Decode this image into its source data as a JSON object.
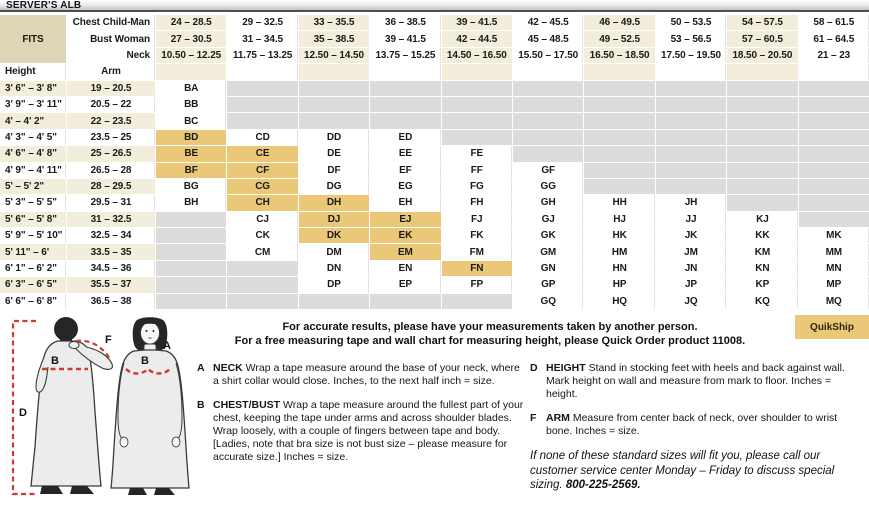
{
  "title": "SERVER'S ALB",
  "quikship_label": "QuikShip",
  "table": {
    "fits_label": "FITS",
    "row_labels": [
      "Chest Child-Man",
      "Bust Woman",
      "Neck"
    ],
    "chest": [
      "24 – 28.5",
      "29 – 32.5",
      "33 – 35.5",
      "36 – 38.5",
      "39 – 41.5",
      "42 – 45.5",
      "46 – 49.5",
      "50 – 53.5",
      "54 – 57.5",
      "58 – 61.5"
    ],
    "bust": [
      "27 – 30.5",
      "31 – 34.5",
      "35 – 38.5",
      "39 – 41.5",
      "42 – 44.5",
      "45 – 48.5",
      "49 – 52.5",
      "53 – 56.5",
      "57 – 60.5",
      "61 – 64.5"
    ],
    "neck": [
      "10.50 – 12.25",
      "11.75 – 13.25",
      "12.50 – 14.50",
      "13.75 – 15.25",
      "14.50 – 16.50",
      "15.50 – 17.50",
      "16.50 – 18.50",
      "17.50 – 19.50",
      "18.50 – 20.50",
      "21 – 23"
    ],
    "height_label": "Height",
    "arm_label": "Arm",
    "rows": [
      {
        "height": "3' 6\" – 3' 8\"",
        "arm": "19 – 20.5",
        "cells": [
          "BA",
          "",
          "",
          "",
          "",
          "",
          "",
          "",
          "",
          ""
        ]
      },
      {
        "height": "3' 9\" – 3' 11\"",
        "arm": "20.5 – 22",
        "cells": [
          "BB",
          "",
          "",
          "",
          "",
          "",
          "",
          "",
          "",
          ""
        ]
      },
      {
        "height": "4' – 4' 2\"",
        "arm": "22 – 23.5",
        "cells": [
          "BC",
          "",
          "",
          "",
          "",
          "",
          "",
          "",
          "",
          ""
        ]
      },
      {
        "height": "4' 3\" – 4' 5\"",
        "arm": "23.5 – 25",
        "cells": [
          "BD",
          "CD",
          "DD",
          "ED",
          "",
          "",
          "",
          "",
          "",
          ""
        ]
      },
      {
        "height": "4' 6\" – 4' 8\"",
        "arm": "25 – 26.5",
        "cells": [
          "BE",
          "CE",
          "DE",
          "EE",
          "FE",
          "",
          "",
          "",
          "",
          ""
        ]
      },
      {
        "height": "4' 9\" – 4' 11\"",
        "arm": "26.5 – 28",
        "cells": [
          "BF",
          "CF",
          "DF",
          "EF",
          "FF",
          "GF",
          "",
          "",
          "",
          ""
        ]
      },
      {
        "height": "5' – 5' 2\"",
        "arm": "28 – 29.5",
        "cells": [
          "BG",
          "CG",
          "DG",
          "EG",
          "FG",
          "GG",
          "",
          "",
          "",
          ""
        ]
      },
      {
        "height": "5' 3\" – 5' 5\"",
        "arm": "29.5 – 31",
        "cells": [
          "BH",
          "CH",
          "DH",
          "EH",
          "FH",
          "GH",
          "HH",
          "JH",
          "",
          ""
        ]
      },
      {
        "height": "5' 6\" – 5' 8\"",
        "arm": "31 – 32.5",
        "cells": [
          "",
          "CJ",
          "DJ",
          "EJ",
          "FJ",
          "GJ",
          "HJ",
          "JJ",
          "KJ",
          ""
        ]
      },
      {
        "height": "5' 9\" – 5' 10\"",
        "arm": "32.5 – 34",
        "cells": [
          "",
          "CK",
          "DK",
          "EK",
          "FK",
          "GK",
          "HK",
          "JK",
          "KK",
          "MK"
        ]
      },
      {
        "height": "5' 11\" – 6'",
        "arm": "33.5 – 35",
        "cells": [
          "",
          "CM",
          "DM",
          "EM",
          "FM",
          "GM",
          "HM",
          "JM",
          "KM",
          "MM"
        ]
      },
      {
        "height": "6' 1\" – 6' 2\"",
        "arm": "34.5 – 36",
        "cells": [
          "",
          "",
          "DN",
          "EN",
          "FN",
          "GN",
          "HN",
          "JN",
          "KN",
          "MN"
        ]
      },
      {
        "height": "6' 3\" – 6' 5\"",
        "arm": "35.5 – 37",
        "cells": [
          "",
          "",
          "DP",
          "EP",
          "FP",
          "GP",
          "HP",
          "JP",
          "KP",
          "MP"
        ]
      },
      {
        "height": "6' 6\" – 6' 8\"",
        "arm": "36.5 – 38",
        "cells": [
          "",
          "",
          "",
          "",
          "",
          "GQ",
          "HQ",
          "JQ",
          "KQ",
          "MQ"
        ]
      }
    ],
    "highlighted": [
      "BD",
      "BE",
      "BF",
      "CE",
      "CF",
      "CG",
      "CH",
      "DH",
      "DJ",
      "DK",
      "EJ",
      "EK",
      "EM",
      "FN"
    ]
  },
  "notes": {
    "line1": "For accurate results, please have your measurements taken by another person.",
    "line2": "For a free measuring tape and wall chart for measuring height, please Quick Order product 11008."
  },
  "instructions": {
    "col1": [
      {
        "letter": "A",
        "term": "NECK",
        "text": "Wrap a tape measure around the base of your neck, where a shirt collar would close. Inches, to the next half inch = size."
      },
      {
        "letter": "B",
        "term": "CHEST/BUST",
        "text": "Wrap a tape measure around the fullest part of your chest, keeping the tape under arms and across shoulder blades. Wrap loosely, with a couple of fingers between tape and body. [Ladies, note that bra size is not bust size – please measure for accurate size.] Inches = size."
      }
    ],
    "col2": [
      {
        "letter": "D",
        "term": "HEIGHT",
        "text": "Stand in stocking feet with heels and back against wall. Mark height on wall and measure from mark to floor. Inches = height."
      },
      {
        "letter": "F",
        "term": "ARM",
        "text": "Measure from center back of neck, over shoulder to wrist bone. Inches = size."
      }
    ],
    "special_note": {
      "text": "If none of these standard sizes will fit you, please call our customer service center Monday – Friday to discuss special sizing.",
      "phone": "800-225-2569."
    }
  },
  "figure_labels": {
    "a": "A",
    "b": "B",
    "d": "D",
    "f": "F"
  },
  "colors": {
    "highlight": "#ebc878",
    "cream_column": "#f2eedb",
    "fits_tan": "#ddd5b5",
    "empty_gray": "#dcdcdc",
    "dash_red": "#cf3a2b"
  }
}
